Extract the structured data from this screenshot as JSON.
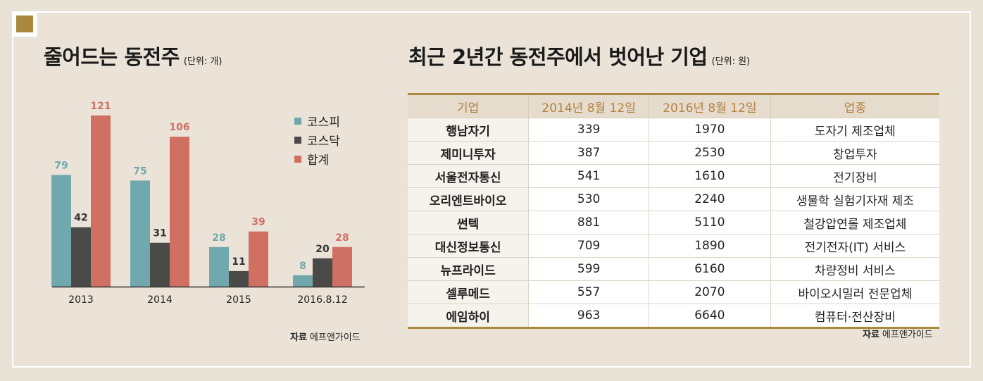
{
  "left_title": "줄어드는 동전주",
  "left_unit": "(단위: 개)",
  "right_title": "최근 2년간 동전주에서 벗어난 기업",
  "right_unit": "(단위: 원)",
  "left_source_label": "자료",
  "left_source_text": "에프앤가이드",
  "right_source_label": "자료",
  "right_source_text": "에프앤가이드",
  "colors": {
    "kospi": "#71a8ae",
    "kosdaq": "#4a4a48",
    "total": "#d07063",
    "accent": "#a98a3d"
  },
  "chart_data": {
    "type": "bar",
    "categories": [
      "2013",
      "2014",
      "2015",
      "2016.8.12"
    ],
    "series": [
      {
        "name": "코스피",
        "values": [
          79,
          75,
          28,
          8
        ]
      },
      {
        "name": "코스닥",
        "values": [
          42,
          31,
          11,
          20
        ]
      },
      {
        "name": "합계",
        "values": [
          121,
          106,
          39,
          28
        ]
      }
    ],
    "ylim": [
      0,
      121
    ],
    "legend": "right"
  },
  "table": {
    "headers": [
      "기업",
      "2014년 8월 12일",
      "2016년 8월 12일",
      "업종"
    ],
    "rows": [
      [
        "행남자기",
        "339",
        "1970",
        "도자기 제조업체"
      ],
      [
        "제미니투자",
        "387",
        "2530",
        "창업투자"
      ],
      [
        "서울전자통신",
        "541",
        "1610",
        "전기장비"
      ],
      [
        "오리엔트바이오",
        "530",
        "2240",
        "생물학 실험기자재 제조"
      ],
      [
        "썬텍",
        "881",
        "5110",
        "철강압연롤 제조업체"
      ],
      [
        "대신정보통신",
        "709",
        "1890",
        "전기전자(IT) 서비스"
      ],
      [
        "뉴프라이드",
        "599",
        "6160",
        "차량정비 서비스"
      ],
      [
        "셀루메드",
        "557",
        "2070",
        "바이오시밀러 전문업체"
      ],
      [
        "에임하이",
        "963",
        "6640",
        "컴퓨터·전산장비"
      ]
    ]
  }
}
